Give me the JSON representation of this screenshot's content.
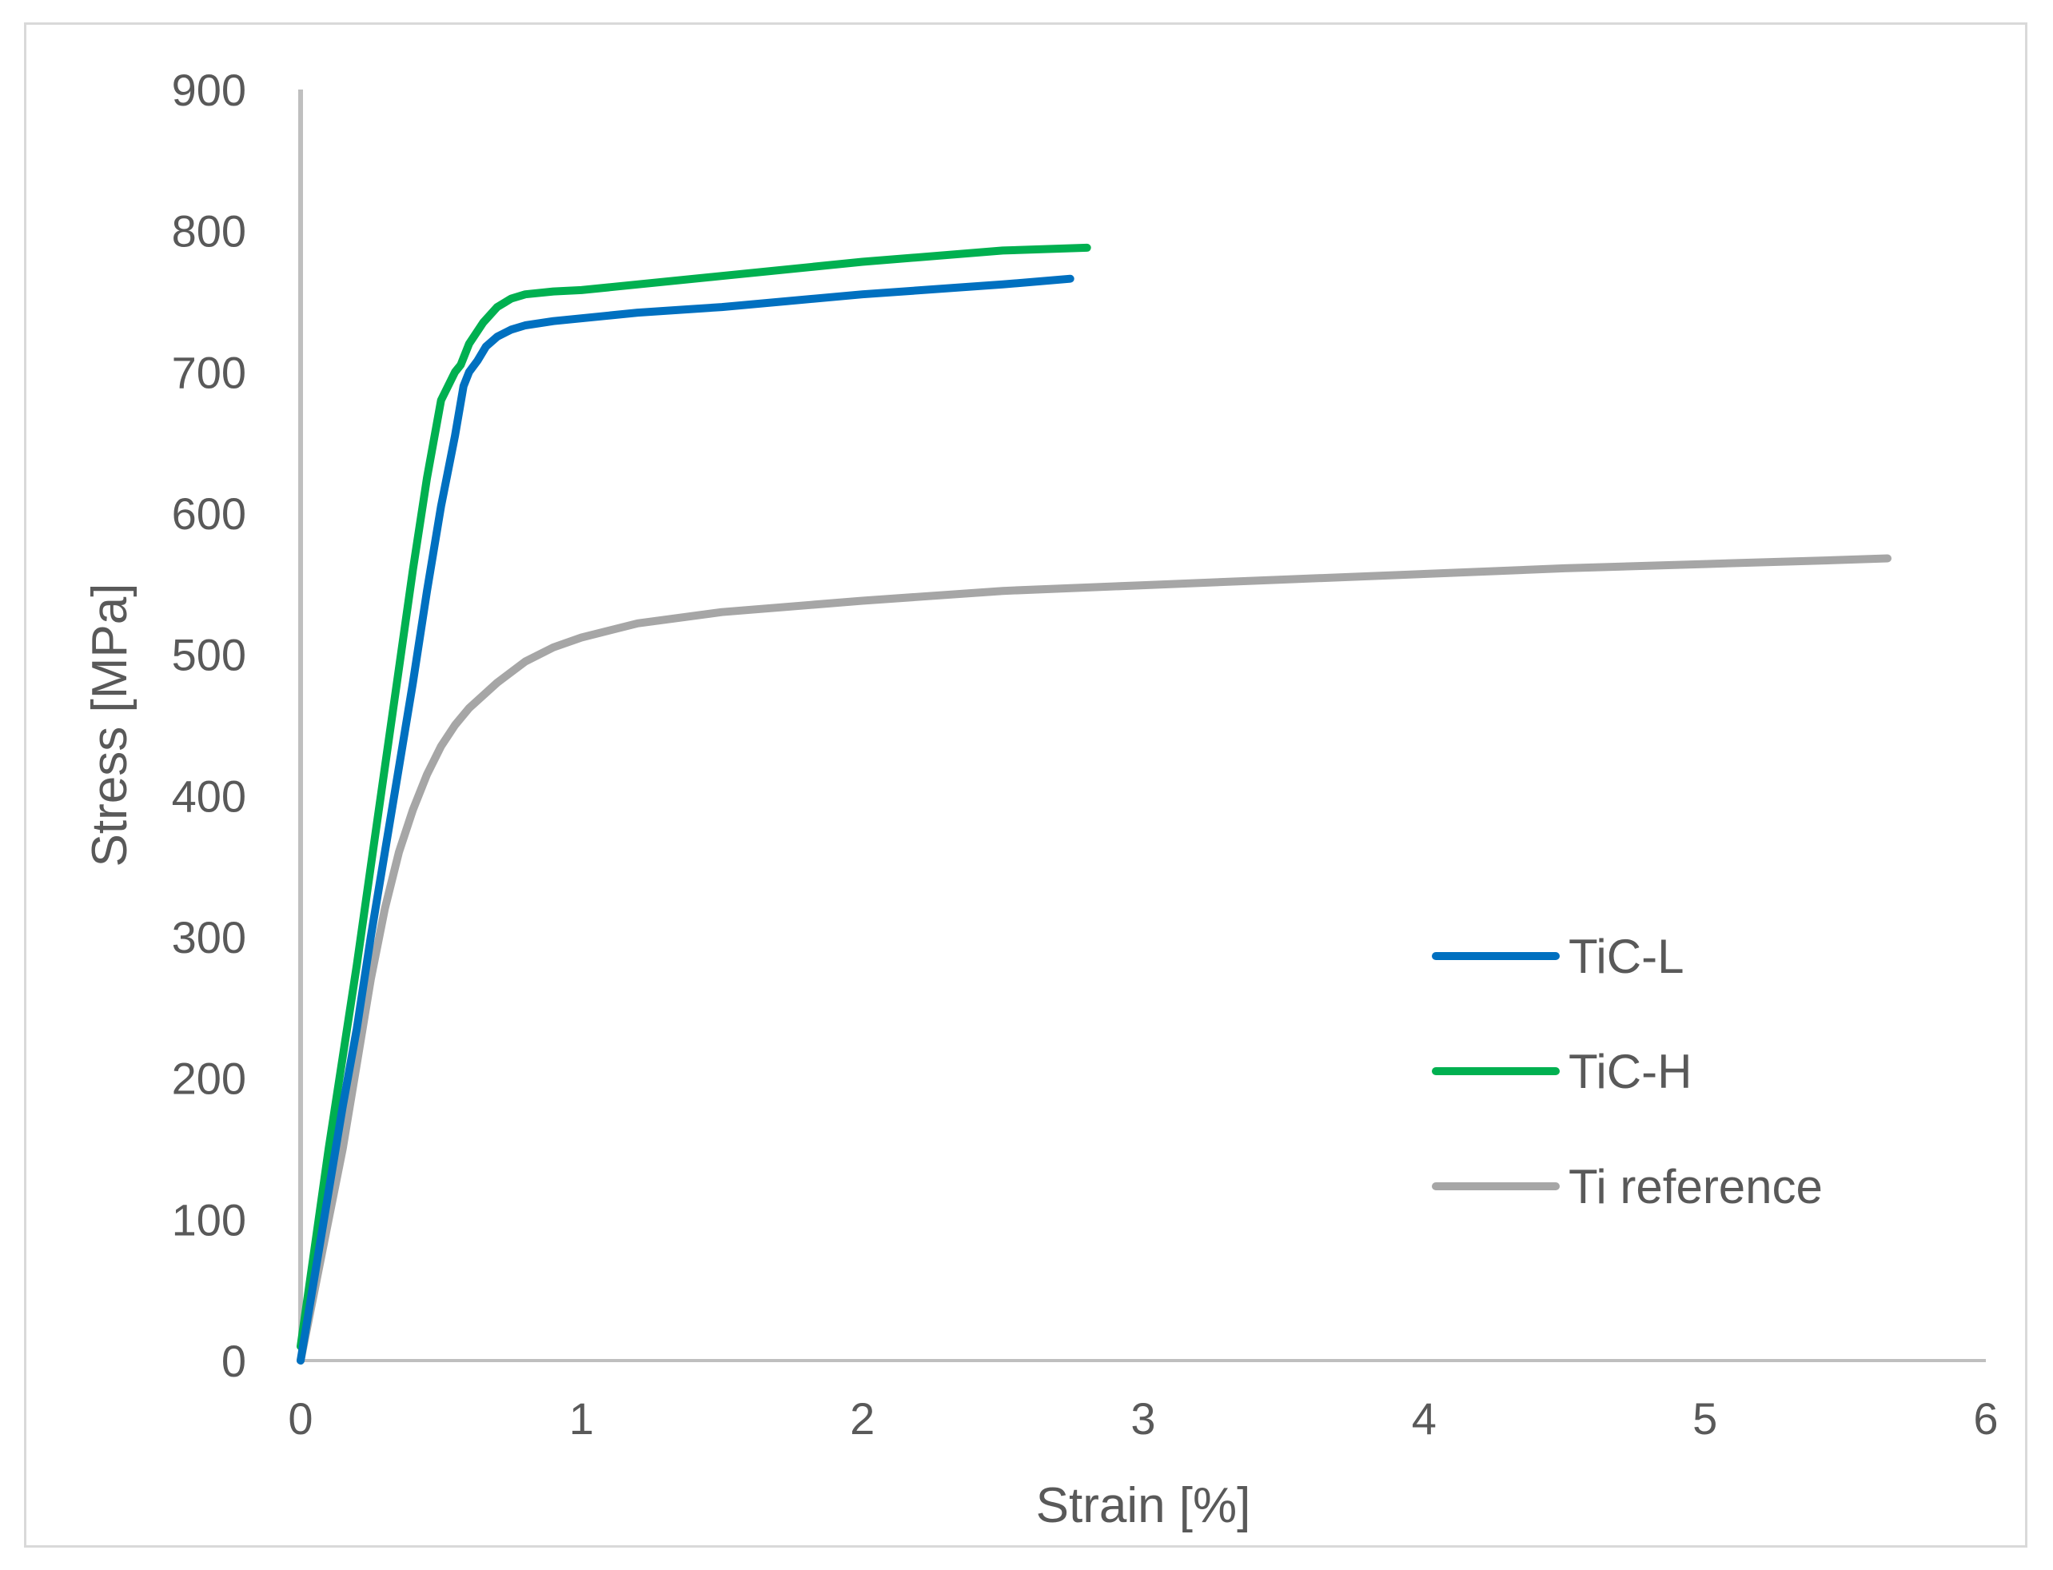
{
  "chart_data": {
    "type": "line",
    "title": "",
    "xlabel": "Strain [%]",
    "ylabel": "Stress [MPa]",
    "xlim": [
      0,
      6
    ],
    "ylim": [
      0,
      900
    ],
    "xticks": [
      0,
      1,
      2,
      3,
      4,
      5,
      6
    ],
    "yticks": [
      0,
      100,
      200,
      300,
      400,
      500,
      600,
      700,
      800,
      900
    ],
    "grid": false,
    "legend_position": "right",
    "series": [
      {
        "name": "TiC-L",
        "color": "#0070C0",
        "x": [
          0,
          0.05,
          0.1,
          0.15,
          0.2,
          0.25,
          0.3,
          0.35,
          0.4,
          0.45,
          0.5,
          0.55,
          0.58,
          0.6,
          0.63,
          0.66,
          0.7,
          0.75,
          0.8,
          0.9,
          1.0,
          1.2,
          1.5,
          2.0,
          2.5,
          2.74
        ],
        "y": [
          0,
          60,
          120,
          180,
          235,
          300,
          360,
          420,
          480,
          545,
          605,
          655,
          690,
          700,
          708,
          718,
          725,
          730,
          733,
          736,
          738,
          742,
          746,
          755,
          762,
          766
        ]
      },
      {
        "name": "TiC-H",
        "color": "#00B050",
        "x": [
          0,
          0.05,
          0.1,
          0.15,
          0.2,
          0.25,
          0.3,
          0.35,
          0.4,
          0.45,
          0.5,
          0.55,
          0.57,
          0.6,
          0.65,
          0.7,
          0.75,
          0.8,
          0.9,
          1.0,
          1.5,
          2.0,
          2.5,
          2.8
        ],
        "y": [
          10,
          80,
          150,
          215,
          280,
          350,
          420,
          490,
          560,
          625,
          680,
          700,
          705,
          720,
          735,
          746,
          752,
          755,
          757,
          758,
          768,
          778,
          786,
          788
        ]
      },
      {
        "name": "Ti reference",
        "color": "#A6A6A6",
        "x": [
          0,
          0.05,
          0.1,
          0.15,
          0.2,
          0.25,
          0.3,
          0.35,
          0.4,
          0.45,
          0.5,
          0.55,
          0.6,
          0.7,
          0.8,
          0.9,
          1.0,
          1.2,
          1.5,
          2.0,
          2.5,
          3.0,
          3.5,
          4.0,
          4.5,
          5.0,
          5.5,
          5.65
        ],
        "y": [
          0,
          50,
          100,
          150,
          210,
          270,
          320,
          360,
          390,
          415,
          435,
          450,
          462,
          480,
          495,
          505,
          512,
          522,
          530,
          538,
          545,
          549,
          553,
          557,
          561,
          564,
          567,
          568
        ]
      }
    ]
  }
}
